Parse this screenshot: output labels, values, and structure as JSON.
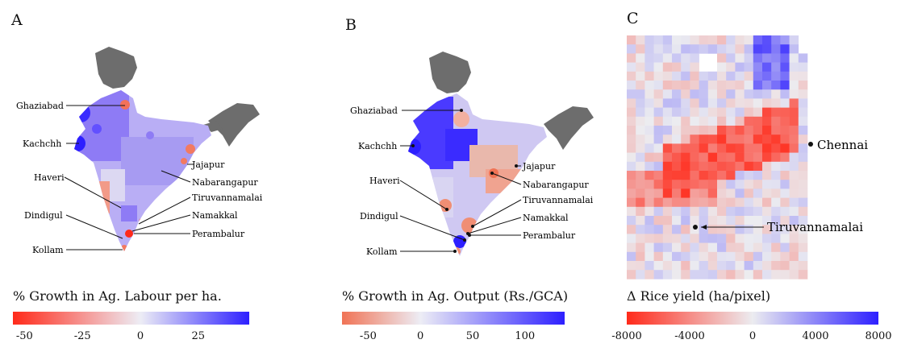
{
  "panels": {
    "a": {
      "label": "A",
      "colorbar_title": "% Growth in Ag. Labour per ha.",
      "ticks": [
        "-50",
        "-25",
        "0",
        "25"
      ],
      "tick_values": [
        -50,
        -25,
        0,
        25
      ],
      "range": [
        -55,
        47
      ],
      "colors": {
        "low": "#ff2a1a",
        "mid": "#ededf5",
        "high": "#2d1fff"
      },
      "districts": [
        "Ghaziabad",
        "Kachchh",
        "Jajapur",
        "Nabarangapur",
        "Haveri",
        "Tiruvannamalai",
        "Dindigul",
        "Namakkal",
        "Perambalur",
        "Kollam"
      ]
    },
    "b": {
      "label": "B",
      "colorbar_title": "% Growth in Ag. Output (Rs./GCA)",
      "ticks": [
        "-50",
        "0",
        "50",
        "100"
      ],
      "tick_values": [
        -50,
        0,
        50,
        100
      ],
      "range": [
        -75,
        138
      ],
      "colors": {
        "low": "#f07355",
        "mid": "#ededf5",
        "high": "#2d1fff"
      },
      "districts": [
        "Ghaziabad",
        "Kachchh",
        "Jajapur",
        "Nabarangapur",
        "Haveri",
        "Tiruvannamalai",
        "Dindigul",
        "Namakkal",
        "Perambalur",
        "Kollam"
      ]
    },
    "c": {
      "label": "C",
      "colorbar_title": "Δ Rice yield (ha/pixel)",
      "ticks": [
        "-8000",
        "-4000",
        "0",
        "4000",
        "8000"
      ],
      "tick_values": [
        -8000,
        -4000,
        0,
        4000,
        8000
      ],
      "range": [
        -8000,
        8000
      ],
      "colors": {
        "low": "#ff2a1a",
        "mid": "#ececf0",
        "high": "#2d1fff"
      },
      "places": [
        "Chennai",
        "Tiruvannamalai"
      ]
    }
  }
}
